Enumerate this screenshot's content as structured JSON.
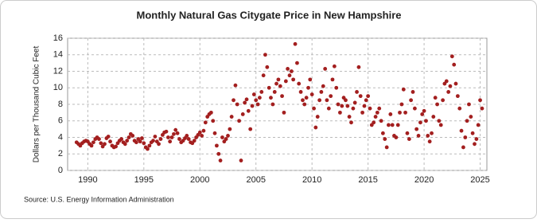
{
  "chart_data": {
    "type": "scatter",
    "title": "Monthly Natural Gas Citygate Price in New Hampshire",
    "y_label": "Dollars per Thousand Cubic Feet",
    "source": "Source: U.S. Energy Information Administration",
    "color": "#a31f1f",
    "grid": true,
    "xlim": [
      1988.2,
      2025.6
    ],
    "xticks": [
      1990,
      1995,
      2000,
      2005,
      2010,
      2015,
      2020,
      2025
    ],
    "ylim": [
      0,
      16
    ],
    "yticks": [
      0,
      2,
      4,
      6,
      8,
      10,
      12,
      14,
      16
    ],
    "x": [
      1989.0,
      1989.17,
      1989.33,
      1989.5,
      1989.67,
      1989.83,
      1990.0,
      1990.17,
      1990.33,
      1990.5,
      1990.67,
      1990.83,
      1991.0,
      1991.17,
      1991.33,
      1991.5,
      1991.67,
      1991.83,
      1992.0,
      1992.17,
      1992.33,
      1992.5,
      1992.67,
      1992.83,
      1993.0,
      1993.17,
      1993.33,
      1993.5,
      1993.67,
      1993.83,
      1994.0,
      1994.17,
      1994.33,
      1994.5,
      1994.67,
      1994.83,
      1995.0,
      1995.17,
      1995.33,
      1995.5,
      1995.67,
      1995.83,
      1996.0,
      1996.17,
      1996.33,
      1996.5,
      1996.67,
      1996.83,
      1997.0,
      1997.17,
      1997.33,
      1997.5,
      1997.67,
      1997.83,
      1998.0,
      1998.17,
      1998.33,
      1998.5,
      1998.67,
      1998.83,
      1999.0,
      1999.17,
      1999.33,
      1999.5,
      1999.67,
      1999.83,
      2000.0,
      2000.17,
      2000.33,
      2000.5,
      2000.67,
      2000.83,
      2001.0,
      2001.17,
      2001.33,
      2001.5,
      2001.67,
      2001.83,
      2002.0,
      2002.17,
      2002.33,
      2002.5,
      2002.67,
      2002.83,
      2003.0,
      2003.17,
      2003.33,
      2003.5,
      2003.67,
      2003.83,
      2004.0,
      2004.17,
      2004.33,
      2004.5,
      2004.67,
      2004.83,
      2005.0,
      2005.17,
      2005.33,
      2005.5,
      2005.67,
      2005.83,
      2006.0,
      2006.17,
      2006.33,
      2006.5,
      2006.67,
      2006.83,
      2007.0,
      2007.17,
      2007.33,
      2007.5,
      2007.67,
      2007.83,
      2008.0,
      2008.17,
      2008.33,
      2008.5,
      2008.67,
      2008.83,
      2009.0,
      2009.17,
      2009.33,
      2009.5,
      2009.67,
      2009.83,
      2010.0,
      2010.17,
      2010.33,
      2010.5,
      2010.67,
      2010.83,
      2011.0,
      2011.17,
      2011.33,
      2011.5,
      2011.67,
      2011.83,
      2012.0,
      2012.17,
      2012.33,
      2012.5,
      2012.67,
      2012.83,
      2013.0,
      2013.17,
      2013.33,
      2013.5,
      2013.67,
      2013.83,
      2014.0,
      2014.17,
      2014.33,
      2014.5,
      2014.67,
      2014.83,
      2015.0,
      2015.17,
      2015.33,
      2015.5,
      2015.67,
      2015.83,
      2016.0,
      2016.17,
      2016.33,
      2016.5,
      2016.67,
      2016.83,
      2017.0,
      2017.17,
      2017.33,
      2017.5,
      2017.67,
      2017.83,
      2018.0,
      2018.17,
      2018.33,
      2018.5,
      2018.67,
      2018.83,
      2019.0,
      2019.17,
      2019.33,
      2019.5,
      2019.67,
      2019.83,
      2020.0,
      2020.17,
      2020.33,
      2020.5,
      2020.67,
      2020.83,
      2021.0,
      2021.17,
      2021.33,
      2021.5,
      2021.67,
      2021.83,
      2022.0,
      2022.17,
      2022.33,
      2022.5,
      2022.67,
      2022.83,
      2023.0,
      2023.17,
      2023.33,
      2023.5,
      2023.67,
      2023.83,
      2024.0,
      2024.17,
      2024.33,
      2024.5,
      2024.67,
      2024.83,
      2025.0,
      2025.17
    ],
    "values": [
      3.4,
      3.2,
      3.0,
      3.3,
      3.5,
      3.6,
      3.5,
      3.2,
      3.0,
      3.4,
      3.8,
      4.0,
      3.8,
      3.3,
      2.9,
      3.2,
      3.9,
      4.1,
      3.5,
      3.0,
      2.8,
      2.9,
      3.3,
      3.6,
      3.8,
      3.4,
      3.2,
      3.6,
      4.0,
      4.4,
      4.2,
      3.6,
      3.4,
      3.8,
      3.5,
      3.9,
      3.3,
      2.8,
      2.6,
      3.0,
      3.4,
      3.6,
      4.1,
      3.5,
      3.2,
      3.8,
      4.3,
      4.6,
      4.7,
      4.0,
      3.5,
      4.0,
      4.4,
      4.9,
      4.5,
      3.8,
      3.4,
      3.6,
      3.9,
      4.2,
      3.8,
      3.4,
      3.3,
      3.6,
      4.0,
      4.3,
      4.6,
      4.2,
      4.8,
      5.8,
      6.5,
      6.8,
      7.0,
      6.0,
      4.5,
      3.0,
      2.0,
      1.2,
      4.0,
      3.5,
      3.8,
      4.2,
      5.0,
      6.5,
      8.5,
      10.3,
      8.0,
      6.0,
      1.2,
      6.8,
      8.2,
      8.6,
      7.2,
      5.0,
      7.8,
      9.2,
      8.5,
      8.0,
      8.8,
      9.5,
      11.5,
      14.0,
      12.5,
      10.0,
      8.8,
      8.0,
      9.5,
      10.5,
      11.0,
      10.2,
      9.0,
      7.0,
      10.8,
      12.3,
      11.5,
      12.0,
      11.0,
      15.3,
      13.0,
      10.5,
      9.5,
      8.5,
      8.0,
      8.8,
      10.0,
      11.0,
      9.2,
      7.5,
      5.2,
      6.5,
      8.5,
      9.5,
      10.2,
      12.3,
      8.5,
      7.5,
      9.0,
      11.0,
      12.6,
      10.0,
      8.0,
      7.0,
      7.8,
      8.8,
      8.5,
      7.8,
      6.5,
      5.8,
      7.5,
      8.2,
      9.5,
      12.5,
      9.0,
      7.0,
      7.8,
      8.5,
      9.0,
      7.5,
      5.5,
      5.8,
      6.5,
      7.0,
      7.5,
      6.0,
      4.5,
      3.8,
      2.8,
      5.5,
      6.8,
      5.5,
      4.2,
      4.0,
      5.5,
      7.0,
      8.0,
      9.8,
      7.0,
      4.5,
      3.8,
      8.5,
      9.5,
      7.5,
      5.0,
      4.2,
      5.8,
      6.8,
      7.2,
      6.0,
      4.2,
      3.5,
      4.5,
      6.5,
      8.8,
      8.0,
      6.0,
      5.5,
      8.5,
      10.5,
      10.8,
      9.5,
      10.2,
      13.8,
      12.8,
      10.5,
      9.0,
      7.5,
      4.8,
      2.8,
      4.0,
      6.0,
      8.0,
      6.5,
      4.5,
      3.2,
      3.8,
      5.5,
      8.5,
      7.5
    ]
  }
}
